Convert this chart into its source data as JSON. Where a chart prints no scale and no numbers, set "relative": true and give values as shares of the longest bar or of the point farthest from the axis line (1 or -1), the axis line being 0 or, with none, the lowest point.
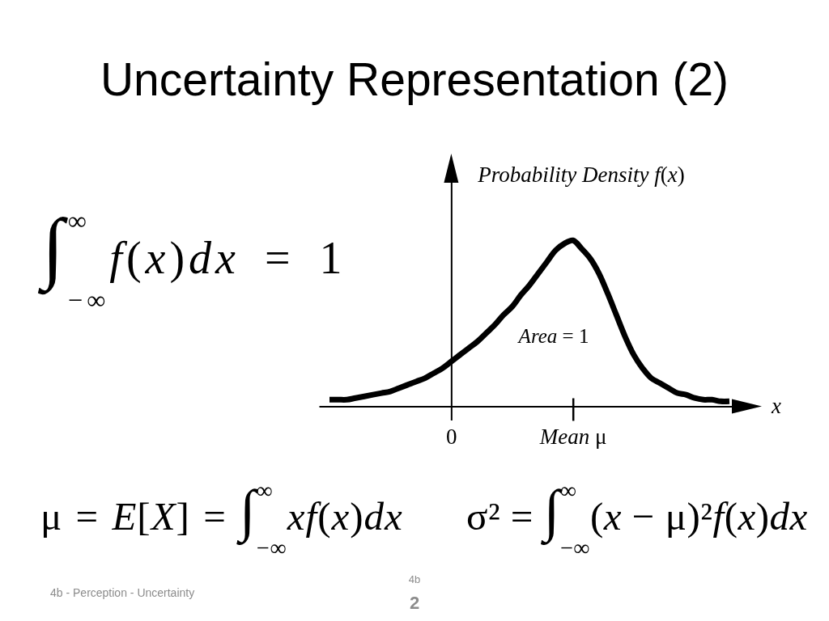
{
  "chart_data": {
    "type": "line",
    "title": "Uncertainty Representation (2)",
    "xlabel": "x",
    "ylabel": "Probability Density f(x)",
    "categories": [
      null,
      null,
      null,
      null,
      null,
      null,
      null,
      null,
      null,
      null,
      null,
      null,
      null,
      null,
      "0",
      null,
      null,
      null,
      null,
      null,
      null,
      null,
      null,
      null,
      null,
      null,
      null,
      null,
      "Mean μ",
      null,
      null,
      null,
      null,
      null,
      null,
      null,
      null,
      null,
      null,
      null,
      null,
      null,
      null,
      null,
      null,
      null,
      null
    ],
    "values": [
      0.04,
      0.04,
      0.04,
      0.05,
      0.06,
      0.07,
      0.08,
      0.09,
      0.11,
      0.13,
      0.15,
      0.17,
      0.2,
      0.23,
      0.27,
      0.31,
      0.35,
      0.39,
      0.44,
      0.49,
      0.55,
      0.6,
      0.67,
      0.73,
      0.8,
      0.87,
      0.94,
      0.98,
      1,
      0.95,
      0.89,
      0.8,
      0.68,
      0.55,
      0.42,
      0.31,
      0.23,
      0.17,
      0.14,
      0.11,
      0.08,
      0.07,
      0.05,
      0.04,
      0.04,
      0.03,
      0.03
    ],
    "color": "#000000",
    "relative": true,
    "annotations": [
      "Area = 1",
      "∫$_{−∞}$$^{∞}$f(x)dx = 1",
      "μ = E[X] = ∫$_{−∞}$$^{∞}$xf(x)dx",
      "σ² = ∫$_{−∞}$$^{∞}$(x − μ)²f(x)dx",
      "4b - Perception - Uncertainty",
      "4b",
      "2"
    ]
  }
}
